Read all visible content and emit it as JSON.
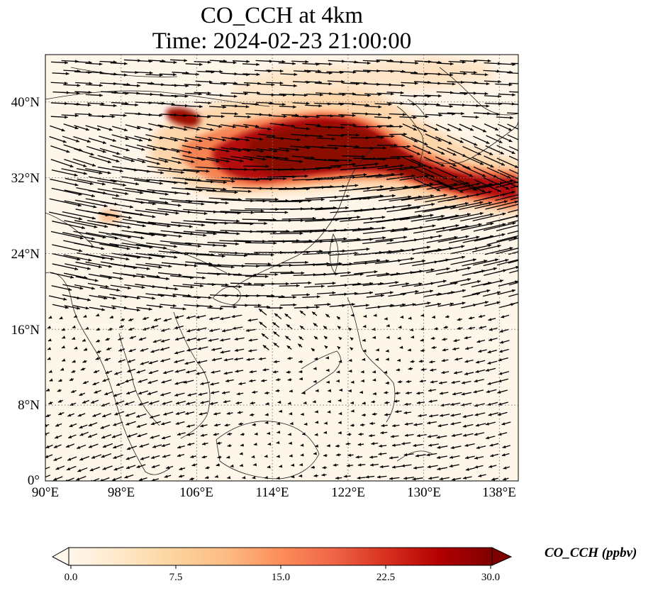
{
  "title": {
    "line1": "CO_CCH at 4km",
    "line2": "Time: 2024-02-23 21:00:00"
  },
  "map": {
    "variable": "CO_CCH",
    "level": "4km",
    "extent": {
      "lon": [
        90,
        140
      ],
      "lat": [
        0,
        45
      ]
    },
    "lat_ticks": [
      "40°N",
      "32°N",
      "24°N",
      "16°N",
      "8°N",
      "0°"
    ],
    "lon_ticks": [
      "90°E",
      "98°E",
      "106°E",
      "114°E",
      "122°E",
      "130°E",
      "138°E"
    ],
    "gridlines": true,
    "wind_vectors": true
  },
  "colorbar": {
    "label": "CO_CCH (ppbv)",
    "colormap": "OrRd",
    "range": [
      0,
      30
    ],
    "ticks": [
      "0.0",
      "7.5",
      "15.0",
      "22.5",
      "30.0"
    ],
    "extend": "both",
    "colors": [
      "#fff7ec",
      "#fee8c8",
      "#fdd49e",
      "#fdbb84",
      "#fc8d59",
      "#ef6548",
      "#d7301f",
      "#b30000",
      "#7f0000"
    ]
  }
}
